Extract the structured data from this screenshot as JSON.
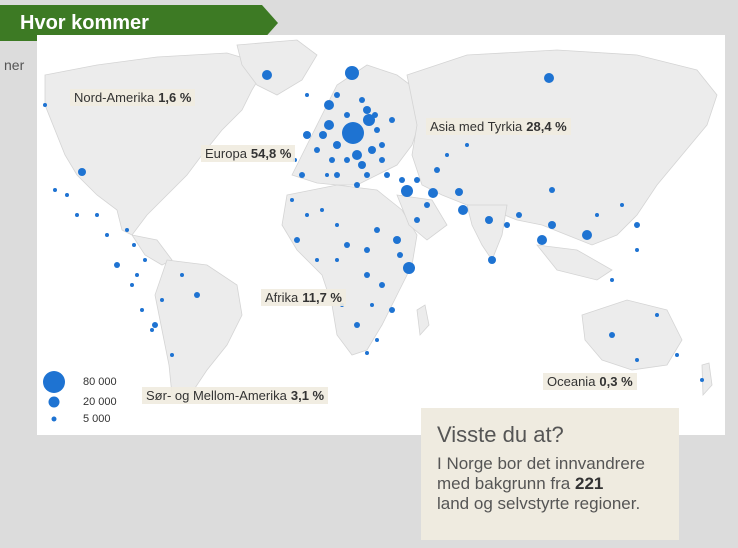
{
  "header": {
    "title": "Hvor kommer innvandrerne fra?"
  },
  "left_snippet": "ner",
  "colors": {
    "bubble": "#1e73d2",
    "header_bg": "#3d7a24",
    "land": "#ececec",
    "water": "#ffffff",
    "label_bg": "#f0ece0"
  },
  "regions": [
    {
      "name": "Nord-Amerika",
      "percent": "1,6 %"
    },
    {
      "name": "Europa",
      "percent": "54,8 %"
    },
    {
      "name": "Asia med Tyrkia",
      "percent": "28,4 %"
    },
    {
      "name": "Afrika",
      "percent": "11,7 %"
    },
    {
      "name": "Sør- og Mellom-Amerika",
      "percent": "3,1 %"
    },
    {
      "name": "Oceania",
      "percent": "0,3 %"
    }
  ],
  "legend": [
    {
      "label": "80 000"
    },
    {
      "label": "20 000"
    },
    {
      "label": "5 000"
    }
  ],
  "info": {
    "title": "Visste du at?",
    "line1": "I Norge bor det innvandrere",
    "line2_pre": "med bakgrunn fra",
    "line2_num": "221",
    "line3": "land og selvstyrte regioner."
  }
}
